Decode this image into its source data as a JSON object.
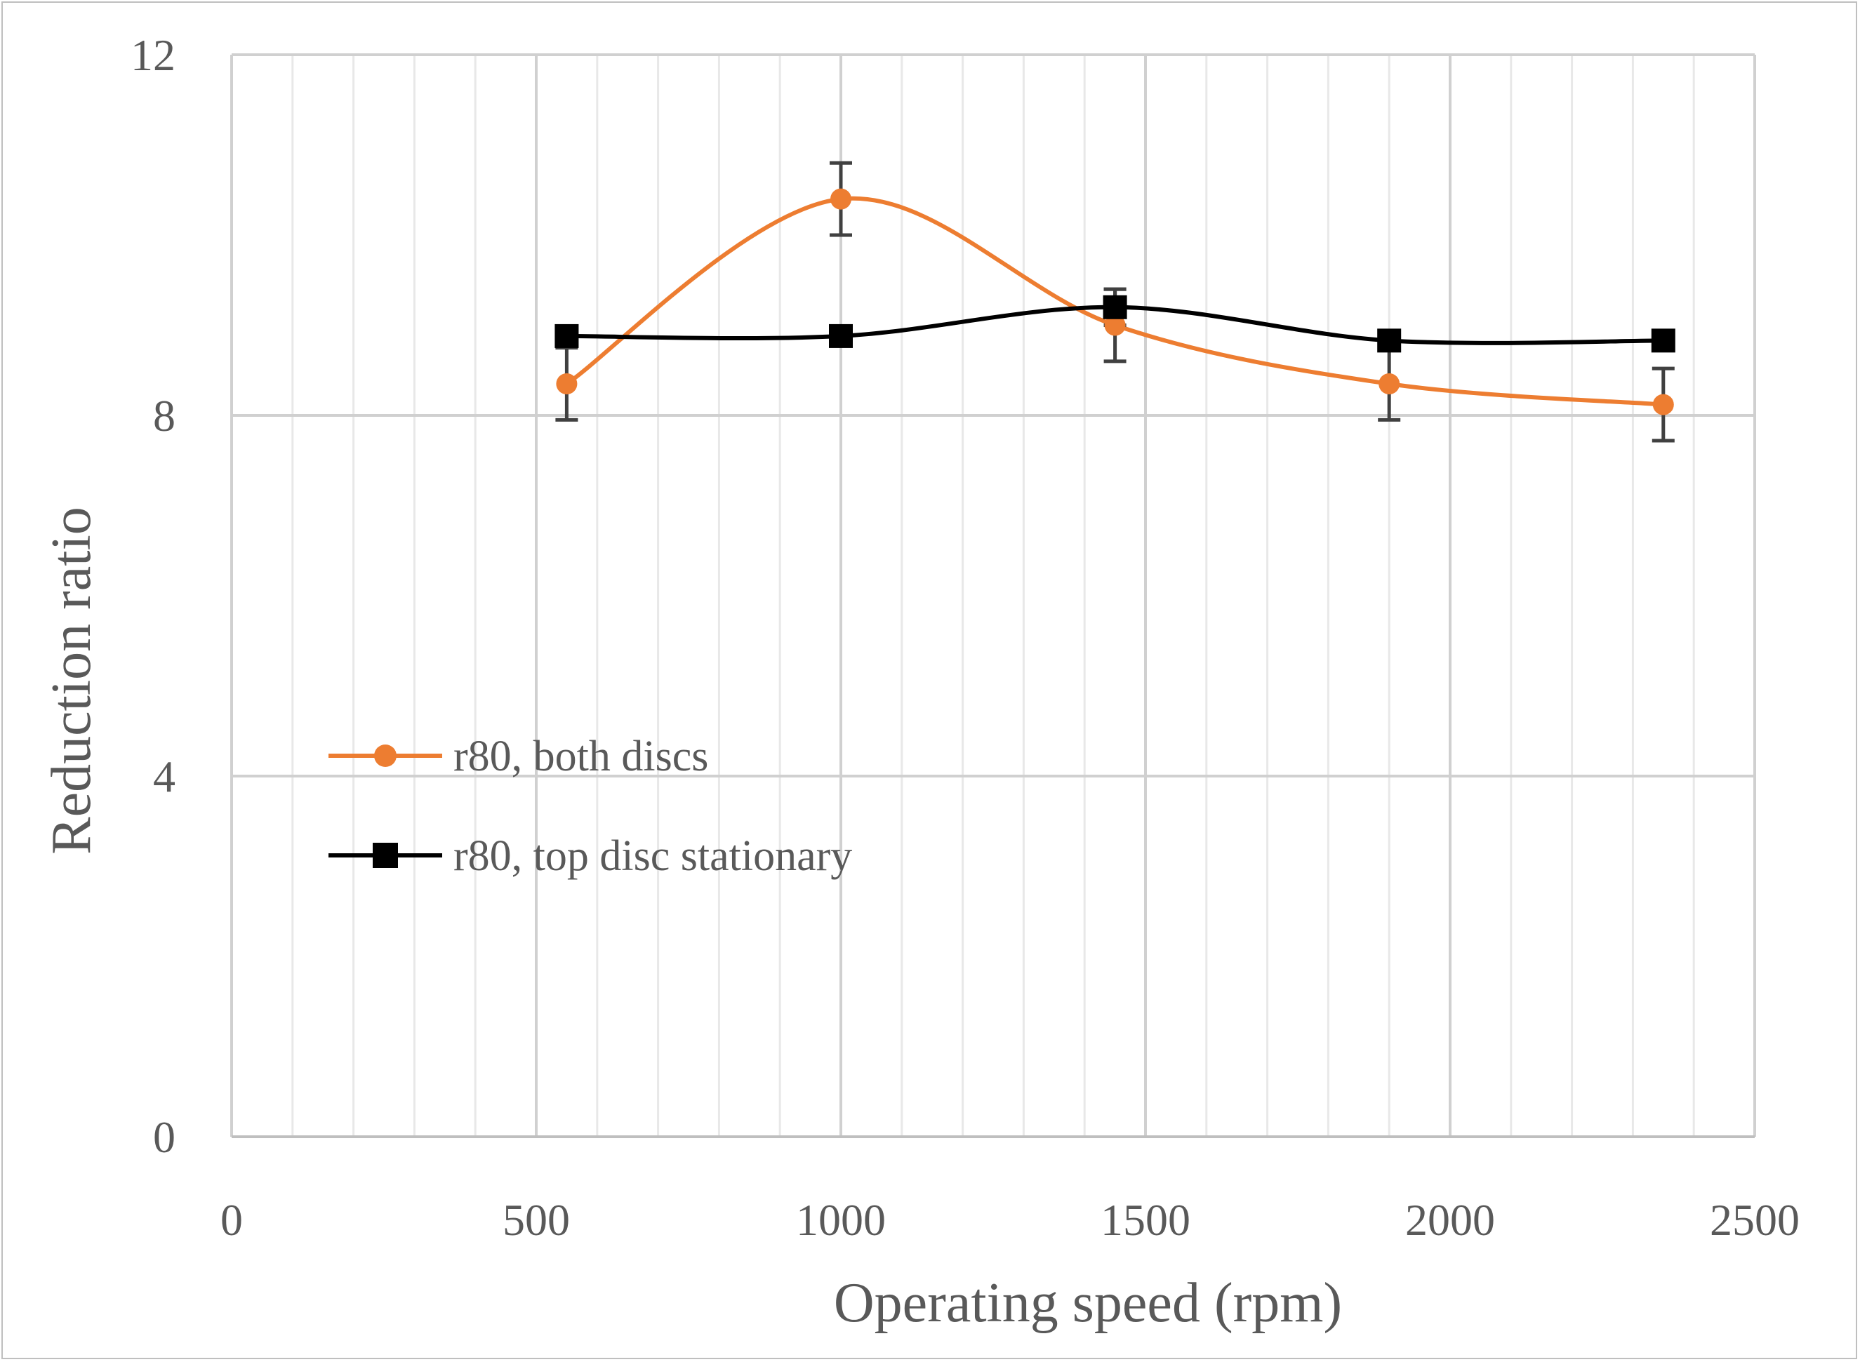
{
  "chart_data": {
    "type": "line",
    "title": "",
    "xlabel": "Operating speed (rpm)",
    "ylabel": "Reduction ratio",
    "xlim": [
      0,
      2500
    ],
    "ylim": [
      0,
      12
    ],
    "x_major_ticks": [
      0,
      500,
      1000,
      1500,
      2000,
      2500
    ],
    "x_minor_step": 100,
    "y_ticks": [
      0,
      4,
      8,
      12
    ],
    "grid": true,
    "legend_position": "center-left",
    "smoothed": true,
    "series": [
      {
        "name": "r80, both discs",
        "color": "#ED7D31",
        "marker": "circle",
        "x": [
          550,
          1000,
          1450,
          1900,
          2350
        ],
        "y": [
          8.35,
          10.4,
          9.0,
          8.35,
          8.12
        ],
        "error": [
          0.4,
          0.4,
          0.4,
          0.4,
          0.4
        ]
      },
      {
        "name": "r80, top disc stationary",
        "color": "#000000",
        "marker": "square",
        "x": [
          550,
          1000,
          1450,
          1900,
          2350
        ],
        "y": [
          8.88,
          8.88,
          9.2,
          8.83,
          8.83
        ],
        "error": [
          0,
          0,
          0.2,
          0,
          0
        ]
      }
    ]
  }
}
